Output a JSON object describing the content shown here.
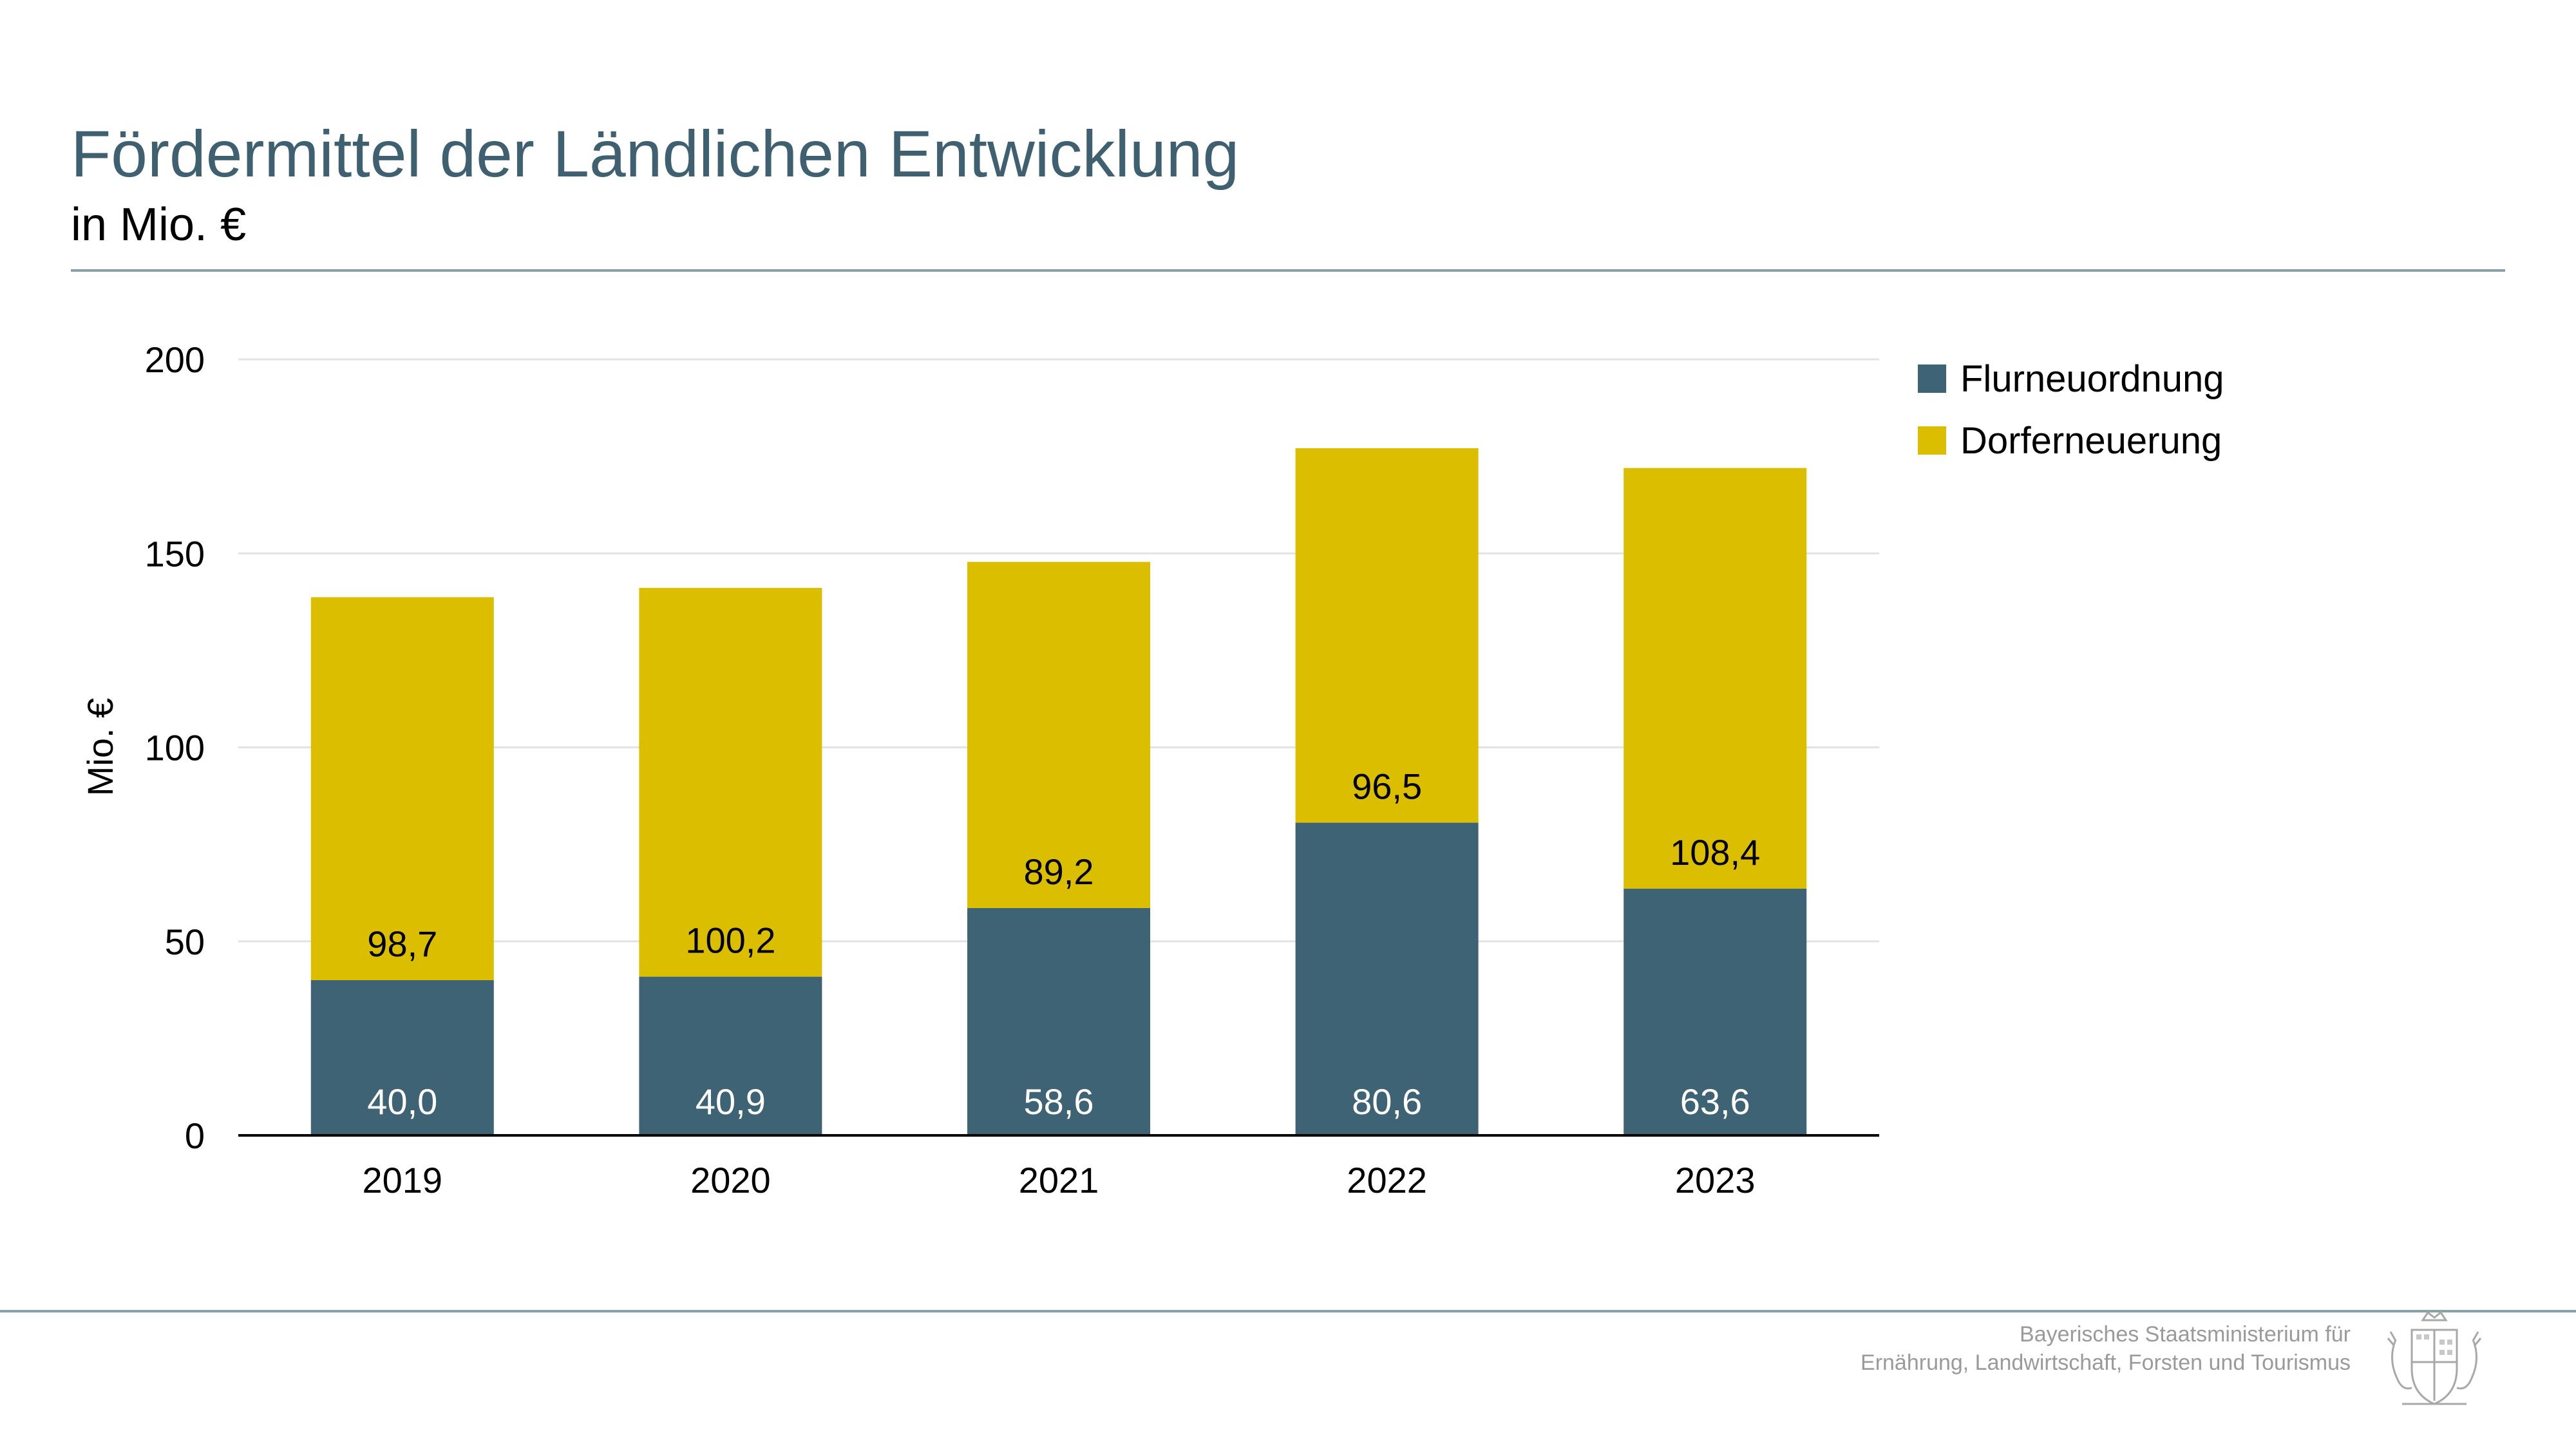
{
  "header": {
    "title": "Fördermittel der Ländlichen Entwicklung",
    "subtitle": "in Mio. €"
  },
  "footer": {
    "line1": "Bayerisches Staatsministerium für",
    "line2": "Ernährung, Landwirtschaft, Forsten und Tourismus"
  },
  "colors": {
    "flurneuordnung": "#3e6374",
    "dorferneuerung": "#dcbe00",
    "title": "#3e6070"
  },
  "chart_data": {
    "type": "bar",
    "stacked": true,
    "categories": [
      "2019",
      "2020",
      "2021",
      "2022",
      "2023"
    ],
    "series": [
      {
        "name": "Flurneuordnung",
        "values": [
          40.0,
          40.9,
          58.6,
          80.6,
          63.6
        ],
        "labels": [
          "40,0",
          "40,9",
          "58,6",
          "80,6",
          "63,6"
        ]
      },
      {
        "name": "Dorferneuerung",
        "values": [
          98.7,
          100.2,
          89.2,
          96.5,
          108.4
        ],
        "labels": [
          "98,7",
          "100,2",
          "89,2",
          "96,5",
          "108,4"
        ]
      }
    ],
    "ylabel": "Mio. €",
    "xlabel": "",
    "ylim": [
      0,
      200
    ],
    "yticks": [
      0,
      50,
      100,
      150,
      200
    ],
    "ytick_labels": [
      "0",
      "50",
      "100",
      "150",
      "200"
    ],
    "grid": true,
    "legend_position": "top-right"
  }
}
